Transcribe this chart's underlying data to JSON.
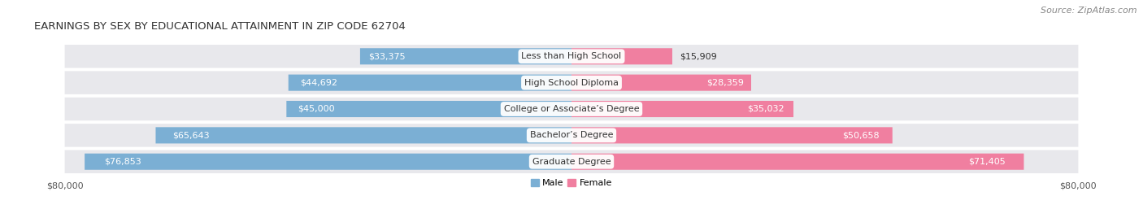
{
  "title": "EARNINGS BY SEX BY EDUCATIONAL ATTAINMENT IN ZIP CODE 62704",
  "source": "Source: ZipAtlas.com",
  "categories": [
    "Less than High School",
    "High School Diploma",
    "College or Associate’s Degree",
    "Bachelor’s Degree",
    "Graduate Degree"
  ],
  "male_values": [
    33375,
    44692,
    45000,
    65643,
    76853
  ],
  "female_values": [
    15909,
    28359,
    35032,
    50658,
    71405
  ],
  "male_color": "#7bafd4",
  "female_color": "#f07fa0",
  "row_bg_color": "#e8e8ec",
  "row_bg_alt_color": "#d8d8de",
  "max_value": 80000,
  "axis_label": "$80,000",
  "legend_male": "Male",
  "legend_female": "Female",
  "title_fontsize": 9.5,
  "source_fontsize": 8,
  "label_fontsize": 8,
  "value_fontsize": 8,
  "axis_fontsize": 8,
  "value_text_dark": "#333333",
  "value_text_light": "#ffffff",
  "label_text_color": "#333333",
  "inside_threshold": 0.3
}
